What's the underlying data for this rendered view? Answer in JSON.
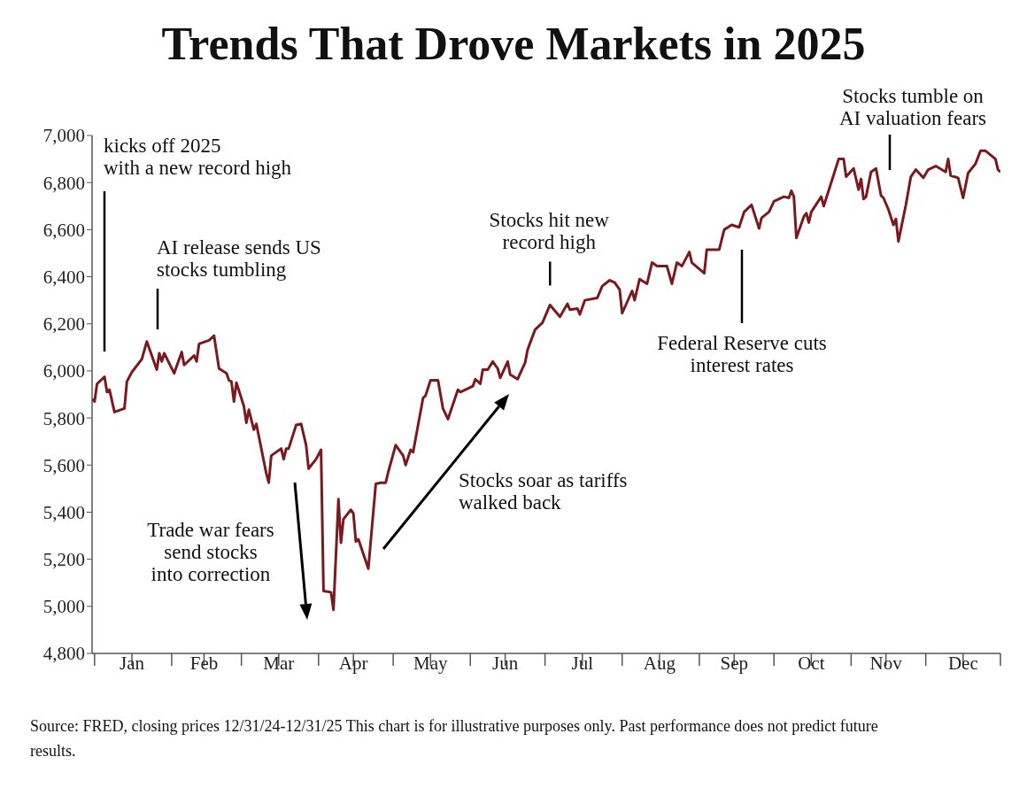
{
  "chart_data": {
    "type": "line",
    "title": "Trends That Drove Markets in 2025",
    "x": [
      "2024-12-31",
      "2025-01-01",
      "2025-01-02",
      "2025-01-05",
      "2025-01-06",
      "2025-01-07",
      "2025-01-09",
      "2025-01-13",
      "2025-01-14",
      "2025-01-16",
      "2025-01-20",
      "2025-01-22",
      "2025-01-26",
      "2025-01-27",
      "2025-01-28",
      "2025-01-29",
      "2025-02-02",
      "2025-02-05",
      "2025-02-06",
      "2025-02-10",
      "2025-02-11",
      "2025-02-12",
      "2025-02-16",
      "2025-02-18",
      "2025-02-20",
      "2025-02-23",
      "2025-02-24",
      "2025-02-25",
      "2025-02-26",
      "2025-02-27",
      "2025-03-02",
      "2025-03-03",
      "2025-03-04",
      "2025-03-06",
      "2025-03-07",
      "2025-03-11",
      "2025-03-12",
      "2025-03-13",
      "2025-03-17",
      "2025-03-18",
      "2025-03-19",
      "2025-03-20",
      "2025-03-23",
      "2025-03-25",
      "2025-03-27",
      "2025-03-28",
      "2025-03-31",
      "2025-04-02",
      "2025-04-03",
      "2025-04-06",
      "2025-04-07",
      "2025-04-09",
      "2025-04-10",
      "2025-04-11",
      "2025-04-14",
      "2025-04-15",
      "2025-04-16",
      "2025-04-17",
      "2025-04-21",
      "2025-04-24",
      "2025-04-26",
      "2025-04-28",
      "2025-04-29",
      "2025-05-02",
      "2025-05-05",
      "2025-05-06",
      "2025-05-08",
      "2025-05-09",
      "2025-05-13",
      "2025-05-14",
      "2025-05-16",
      "2025-05-19",
      "2025-05-21",
      "2025-05-23",
      "2025-05-27",
      "2025-05-28",
      "2025-06-02",
      "2025-06-03",
      "2025-06-05",
      "2025-06-06",
      "2025-06-08",
      "2025-06-10",
      "2025-06-12",
      "2025-06-13",
      "2025-06-16",
      "2025-06-17",
      "2025-06-20",
      "2025-06-23",
      "2025-06-24",
      "2025-06-27",
      "2025-06-30",
      "2025-07-03",
      "2025-07-07",
      "2025-07-10",
      "2025-07-11",
      "2025-07-14",
      "2025-07-15",
      "2025-07-17",
      "2025-07-22",
      "2025-07-24",
      "2025-07-27",
      "2025-07-29",
      "2025-07-31",
      "2025-08-01",
      "2025-08-05",
      "2025-08-06",
      "2025-08-08",
      "2025-08-11",
      "2025-08-13",
      "2025-08-15",
      "2025-08-19",
      "2025-08-21",
      "2025-08-23",
      "2025-08-25",
      "2025-08-28",
      "2025-08-29",
      "2025-09-03",
      "2025-09-04",
      "2025-09-09",
      "2025-09-11",
      "2025-09-14",
      "2025-09-17",
      "2025-09-19",
      "2025-09-22",
      "2025-09-25",
      "2025-09-26",
      "2025-09-29",
      "2025-10-01",
      "2025-10-05",
      "2025-10-07",
      "2025-10-08",
      "2025-10-09",
      "2025-10-10",
      "2025-10-13",
      "2025-10-14",
      "2025-10-15",
      "2025-10-16",
      "2025-10-20",
      "2025-10-21",
      "2025-10-24",
      "2025-10-27",
      "2025-10-29",
      "2025-10-30",
      "2025-11-02",
      "2025-11-04",
      "2025-11-05",
      "2025-11-06",
      "2025-11-07",
      "2025-11-09",
      "2025-11-11",
      "2025-11-13",
      "2025-11-14",
      "2025-11-16",
      "2025-11-18",
      "2025-11-19",
      "2025-11-20",
      "2025-11-23",
      "2025-11-25",
      "2025-11-27",
      "2025-11-30",
      "2025-12-02",
      "2025-12-05",
      "2025-12-09",
      "2025-12-10",
      "2025-12-11",
      "2025-12-14",
      "2025-12-16",
      "2025-12-18",
      "2025-12-21",
      "2025-12-23",
      "2025-12-25",
      "2025-12-29",
      "2025-12-30",
      "2025-12-31"
    ],
    "series": [
      {
        "color": "#7a1a1e",
        "values": [
          5880,
          5870,
          5945,
          5975,
          5910,
          5920,
          5825,
          5840,
          5955,
          5995,
          6050,
          6125,
          6005,
          6075,
          6040,
          6075,
          5990,
          6080,
          6025,
          6065,
          6040,
          6115,
          6130,
          6150,
          6010,
          5990,
          5960,
          5955,
          5870,
          5950,
          5850,
          5780,
          5835,
          5750,
          5775,
          5565,
          5525,
          5640,
          5670,
          5625,
          5670,
          5670,
          5770,
          5775,
          5685,
          5585,
          5625,
          5665,
          5065,
          5060,
          4985,
          5455,
          5270,
          5370,
          5410,
          5395,
          5275,
          5285,
          5160,
          5520,
          5525,
          5525,
          5570,
          5685,
          5640,
          5600,
          5665,
          5655,
          5885,
          5895,
          5960,
          5960,
          5840,
          5795,
          5920,
          5910,
          5935,
          5965,
          5945,
          6005,
          6005,
          6040,
          6010,
          5970,
          6040,
          5985,
          5965,
          6035,
          6090,
          6175,
          6205,
          6280,
          6230,
          6285,
          6260,
          6265,
          6240,
          6300,
          6310,
          6360,
          6385,
          6375,
          6345,
          6245,
          6340,
          6300,
          6390,
          6370,
          6460,
          6445,
          6445,
          6370,
          6460,
          6445,
          6505,
          6460,
          6415,
          6515,
          6515,
          6600,
          6620,
          6610,
          6675,
          6705,
          6605,
          6650,
          6675,
          6720,
          6740,
          6735,
          6765,
          6740,
          6565,
          6655,
          6670,
          6630,
          6675,
          6740,
          6700,
          6800,
          6900,
          6900,
          6825,
          6860,
          6770,
          6815,
          6730,
          6740,
          6845,
          6860,
          6745,
          6735,
          6685,
          6620,
          6645,
          6550,
          6705,
          6825,
          6855,
          6820,
          6855,
          6870,
          6845,
          6900,
          6830,
          6820,
          6735,
          6840,
          6880,
          6935,
          6935,
          6900,
          6855,
          6845
        ]
      }
    ],
    "xlim": [
      "2024-12-31",
      "2025-12-31"
    ],
    "xticks": [
      {
        "value": "2025-01-01",
        "label": null
      },
      {
        "value": "2025-01-16",
        "label": "Jan"
      },
      {
        "value": "2025-02-01",
        "label": null
      },
      {
        "value": "2025-02-14",
        "label": "Feb"
      },
      {
        "value": "2025-03-01",
        "label": null
      },
      {
        "value": "2025-03-16",
        "label": "Mar"
      },
      {
        "value": "2025-04-01",
        "label": null
      },
      {
        "value": "2025-04-15",
        "label": "Apr"
      },
      {
        "value": "2025-05-01",
        "label": null
      },
      {
        "value": "2025-05-16",
        "label": "May"
      },
      {
        "value": "2025-06-01",
        "label": null
      },
      {
        "value": "2025-06-15",
        "label": "Jun"
      },
      {
        "value": "2025-07-01",
        "label": null
      },
      {
        "value": "2025-07-16",
        "label": "Jul"
      },
      {
        "value": "2025-08-01",
        "label": null
      },
      {
        "value": "2025-08-16",
        "label": "Aug"
      },
      {
        "value": "2025-09-01",
        "label": null
      },
      {
        "value": "2025-09-15",
        "label": "Sep"
      },
      {
        "value": "2025-10-01",
        "label": null
      },
      {
        "value": "2025-10-16",
        "label": "Oct"
      },
      {
        "value": "2025-11-01",
        "label": null
      },
      {
        "value": "2025-11-15",
        "label": "Nov"
      },
      {
        "value": "2025-12-01",
        "label": null
      },
      {
        "value": "2025-12-16",
        "label": "Dec"
      },
      {
        "value": "2025-12-31",
        "label": null
      }
    ],
    "ylim": [
      4800,
      7000
    ],
    "yticks": [
      {
        "value": 4800,
        "label": "4,800"
      },
      {
        "value": 5000,
        "label": "5,000"
      },
      {
        "value": 5200,
        "label": "5,200"
      },
      {
        "value": 5400,
        "label": "5,400"
      },
      {
        "value": 5600,
        "label": "5,600"
      },
      {
        "value": 5800,
        "label": "5,800"
      },
      {
        "value": 6000,
        "label": "6,000"
      },
      {
        "value": 6200,
        "label": "6,200"
      },
      {
        "value": 6400,
        "label": "6,400"
      },
      {
        "value": 6600,
        "label": "6,600"
      },
      {
        "value": 6800,
        "label": "6,800"
      },
      {
        "value": 7000,
        "label": "7,000"
      }
    ],
    "annotations": [
      "kicks off 2025 with a new record high",
      "AI release sends US stocks tumbling",
      "Trade war fears send stocks into correction",
      "Stocks soar as tariffs walked back",
      {
        "text": "Stocks hit new record high",
        "x": "2025-07-03",
        "y": 6280
      },
      "Federal Reserve cuts interest rates",
      "Stocks tumble on AI valuation fears",
      "Source: FRED, closing prices 12/31/24-12/31/25  This chart is for illustrative purposes only. Past performance does not predict future results."
    ]
  }
}
